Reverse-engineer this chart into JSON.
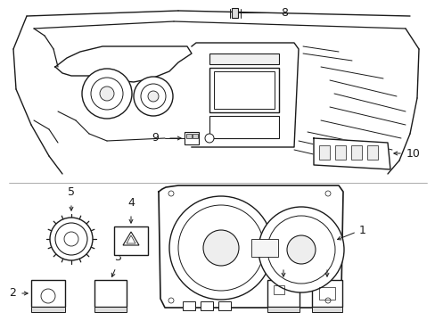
{
  "background_color": "#ffffff",
  "line_color": "#1a1a1a",
  "fig_width": 4.89,
  "fig_height": 3.6,
  "dpi": 100,
  "label_fontsize": 9,
  "gray_fill": "#e8e8e8",
  "dark_fill": "#c0c0c0"
}
